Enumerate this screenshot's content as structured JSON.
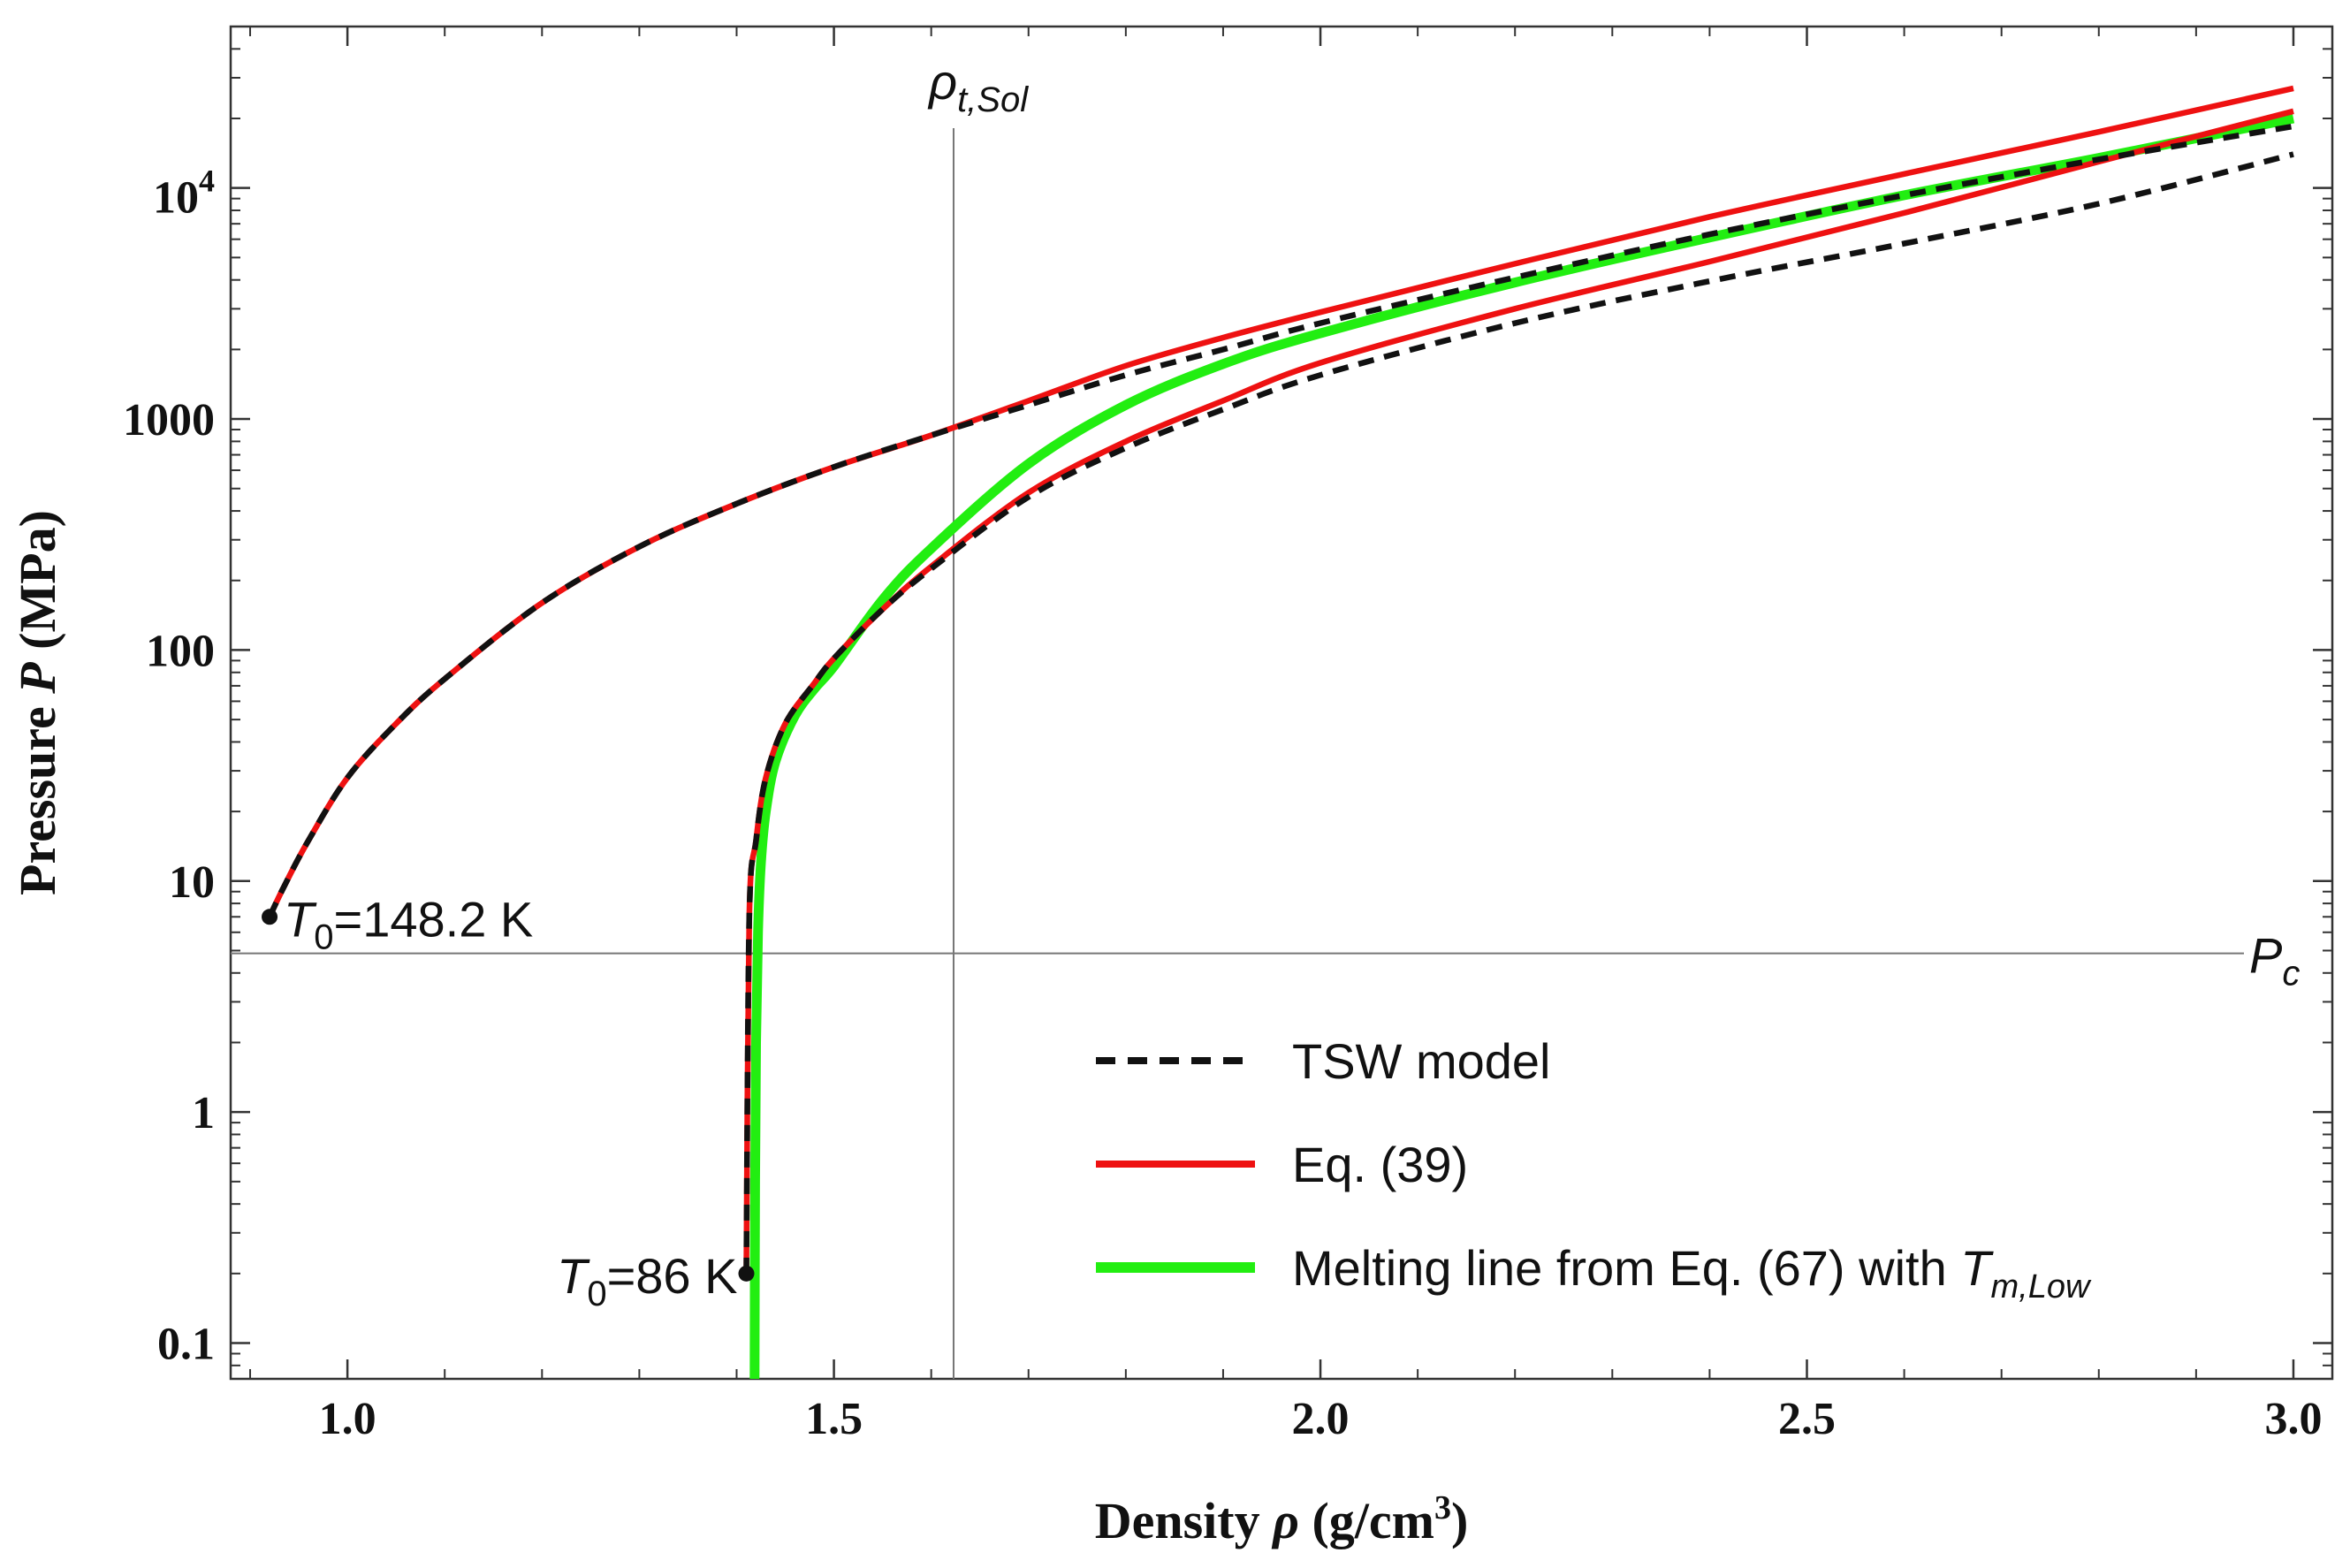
{
  "chart_data": {
    "type": "line",
    "xlabel": "Density ρ (g/cm3)",
    "xlabel_parts": {
      "prefix": "Density ",
      "symbol": "ρ",
      "unit_open": " (g/cm",
      "unit_sup": "3",
      "unit_close": ")"
    },
    "ylabel": "Pressure P (MPa)",
    "ylabel_parts": {
      "prefix": "Pressure ",
      "symbol": "P",
      "suffix": " (MPa)"
    },
    "xlim": [
      0.88,
      3.04
    ],
    "ylim": [
      0.07,
      50000
    ],
    "yscale": "log",
    "x_ticks": [
      {
        "value": 1.0,
        "label": "1.0"
      },
      {
        "value": 1.5,
        "label": "1.5"
      },
      {
        "value": 2.0,
        "label": "2.0"
      },
      {
        "value": 2.5,
        "label": "2.5"
      },
      {
        "value": 3.0,
        "label": "3.0"
      }
    ],
    "y_ticks": [
      {
        "value": 0.1,
        "label": "0.1"
      },
      {
        "value": 1,
        "label": "1"
      },
      {
        "value": 10,
        "label": "10"
      },
      {
        "value": 100,
        "label": "100"
      },
      {
        "value": 1000,
        "label": "1000"
      },
      {
        "value": 10000,
        "label": "10",
        "sup": "4"
      }
    ],
    "reference_lines": {
      "vertical": {
        "x": 1.623,
        "label_main": "ρ",
        "label_sub": "t,Sol"
      },
      "horizontal": {
        "y": 4.86,
        "label_main": "P",
        "label_sub": "c"
      }
    },
    "legend_position": "lower-right",
    "series": [
      {
        "name": "TSW model",
        "legend_label": "TSW model",
        "style": "dashed",
        "color": "#111111",
        "segments": [
          {
            "x": [
              0.92,
              0.935,
              0.96,
              1.0,
              1.05,
              1.1,
              1.2,
              1.3,
              1.4,
              1.5,
              1.6,
              1.7,
              1.8,
              1.9,
              2.0,
              2.2,
              2.4,
              2.6,
              2.8,
              3.0
            ],
            "y": [
              7,
              9.5,
              15,
              28,
              48,
              75,
              160,
              280,
              430,
              620,
              850,
              1150,
              1550,
              2000,
              2600,
              4100,
              6300,
              9300,
              13300,
              18500
            ]
          },
          {
            "x": [
              1.41,
              1.413,
              1.42,
              1.43,
              1.45,
              1.48,
              1.5,
              1.55,
              1.6,
              1.7,
              1.8,
              1.9,
              2.0,
              2.2,
              2.4,
              2.6,
              2.8,
              3.0
            ],
            "y": [
              0.2,
              7,
              15,
              28,
              48,
              72,
              92,
              150,
              225,
              460,
              750,
              1100,
              1550,
              2600,
              3950,
              5750,
              8550,
              14000
            ]
          }
        ]
      },
      {
        "name": "Eq. (39)",
        "legend_label": "Eq. (39)",
        "style": "solid",
        "color": "#ee1111",
        "segments": [
          {
            "x": [
              0.92,
              0.935,
              0.96,
              1.0,
              1.05,
              1.1,
              1.2,
              1.3,
              1.4,
              1.5,
              1.6,
              1.7,
              1.8,
              1.9,
              2.0,
              2.2,
              2.4,
              2.6,
              2.8,
              3.0
            ],
            "y": [
              7,
              9.5,
              15,
              28,
              48,
              75,
              160,
              280,
              430,
              620,
              850,
              1200,
              1700,
              2250,
              2900,
              4700,
              7500,
              11500,
              17500,
              27000
            ]
          },
          {
            "x": [
              1.41,
              1.413,
              1.42,
              1.43,
              1.45,
              1.48,
              1.5,
              1.55,
              1.6,
              1.7,
              1.8,
              1.9,
              2.0,
              2.2,
              2.4,
              2.6,
              2.8,
              3.0
            ],
            "y": [
              0.2,
              7,
              15,
              28,
              48,
              72,
              92,
              150,
              230,
              480,
              800,
              1200,
              1750,
              3000,
              4800,
              7800,
              13000,
              21500
            ]
          }
        ]
      },
      {
        "name": "Melting line from Eq. (67) with Tm,Low",
        "legend_label_main": "Melting line from Eq. (67) with ",
        "legend_T": "T",
        "legend_sub": "m,Low",
        "style": "solid-thick",
        "color": "#22ee11",
        "segments": [
          {
            "x": [
              1.4185,
              1.419,
              1.42,
              1.422,
              1.425,
              1.43,
              1.44,
              1.46,
              1.48,
              1.5,
              1.55,
              1.6,
              1.7,
              1.8,
              1.9,
              2.0,
              2.2,
              2.4,
              2.6,
              2.8,
              3.0
            ],
            "y": [
              0.07,
              0.5,
              2,
              6,
              12,
              20,
              33,
              52,
              68,
              85,
              165,
              275,
              640,
              1150,
              1730,
              2350,
              3900,
              6100,
              9300,
              13500,
              20000
            ]
          }
        ]
      }
    ],
    "annotations": [
      {
        "point": {
          "x": 0.92,
          "y": 7
        },
        "label_T": "T",
        "label_sub": "0",
        "label_rest": "=148.2 K"
      },
      {
        "point": {
          "x": 1.41,
          "y": 0.2
        },
        "label_T": "T",
        "label_sub": "0",
        "label_rest": "=86 K"
      }
    ]
  }
}
